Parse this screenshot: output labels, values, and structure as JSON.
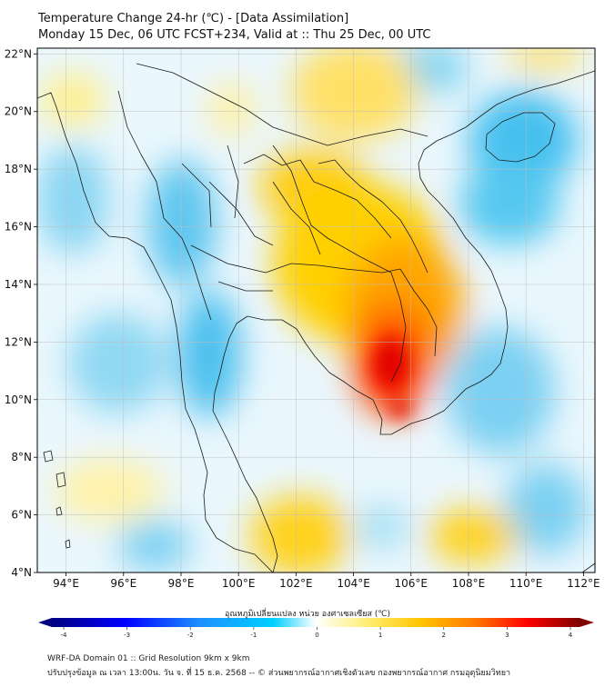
{
  "header": {
    "title_line1": "Temperature Change 24-hr (℃) - [Data Assimilation]",
    "title_line2": "Monday 15 Dec, 06 UTC FCST+234, Valid at :: Thu 25 Dec, 00 UTC"
  },
  "map": {
    "lat_labels": [
      "22°N",
      "20°N",
      "18°N",
      "16°N",
      "14°N",
      "12°N",
      "10°N",
      "8°N",
      "6°N",
      "4°N"
    ],
    "lon_labels": [
      "94°E",
      "96°E",
      "98°E",
      "100°E",
      "102°E",
      "104°E",
      "106°E",
      "108°E",
      "110°E",
      "112°E"
    ],
    "lat_values": [
      22,
      20,
      18,
      16,
      14,
      12,
      10,
      8,
      6,
      4
    ],
    "lon_values": [
      94,
      96,
      98,
      100,
      102,
      104,
      106,
      108,
      110,
      112
    ],
    "lat_range": [
      4,
      22.2
    ],
    "lon_range": [
      93,
      112.4
    ]
  },
  "colorbar": {
    "label": "อุณหภูมิเปลี่ยนแปลง หน่วย องศาเซลเซียส (℃)",
    "ticks": [
      "-4",
      "-3",
      "-2",
      "-1",
      "0",
      "1",
      "2",
      "3",
      "4"
    ],
    "min": -4,
    "max": 4
  },
  "footer": {
    "line1": "WRF-DA Domain 01 :: Grid Resolution 9km x 9km",
    "line2": "ปรับปรุงข้อมูล ณ เวลา 13:00น. วัน จ. ที่ 15 ธ.ค. 2568 -- © ส่วนพยากรณ์อากาศเชิงตัวเลข กองพยากรณ์อากาศ กรมอุตุนิยมวิทยา"
  },
  "colors": {
    "cold_max": "#000080",
    "cold": "#00bfff",
    "neutral": "#ffffff",
    "warm": "#ffd700",
    "hot": "#ff0000",
    "hot_max": "#800000",
    "coastline": "#1a1a1a",
    "grid": "#bfbfbf"
  }
}
